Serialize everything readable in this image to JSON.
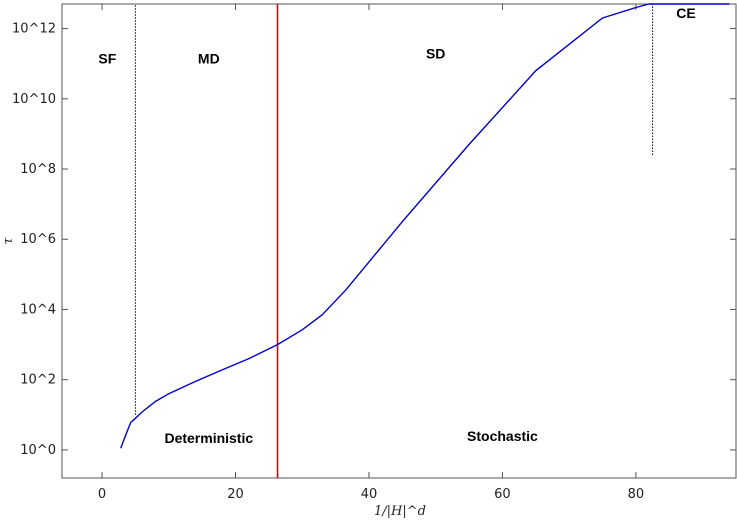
{
  "chart_data": {
    "type": "line",
    "title": "",
    "xlabel": "1/|H|^d",
    "ylabel": "τ",
    "xlim": [
      -6,
      95
    ],
    "ylim_log10": [
      -0.8,
      12.7
    ],
    "y_scale": "log10",
    "x_ticks": [
      0,
      20,
      40,
      60,
      80
    ],
    "y_ticks": [
      {
        "value": 0,
        "label": "10^0"
      },
      {
        "value": 2,
        "label": "10^2"
      },
      {
        "value": 4,
        "label": "10^4"
      },
      {
        "value": 6,
        "label": "10^6"
      },
      {
        "value": 8,
        "label": "10^8"
      },
      {
        "value": 10,
        "label": "10^10"
      },
      {
        "value": 12,
        "label": "10^12"
      }
    ],
    "series": [
      {
        "color": "#0000c8",
        "x": [
          2.8,
          3.5,
          4.3,
          5.0,
          6.0,
          8.0,
          10.0,
          14.0,
          18.0,
          22.0,
          26.3,
          30.0,
          33.0,
          35.0,
          36.5,
          45.0,
          55.0,
          65.0,
          75.0,
          80.0,
          82.0,
          84.0,
          86.0,
          88.0,
          91.0,
          94.0
        ],
        "log10_tau": [
          0.05,
          0.4,
          0.78,
          0.9,
          1.08,
          1.38,
          1.6,
          1.95,
          2.28,
          2.6,
          3.0,
          3.42,
          3.85,
          4.25,
          4.55,
          6.5,
          8.7,
          10.8,
          12.3,
          12.6,
          12.72,
          12.9,
          13.0,
          13.06,
          13.1,
          13.12
        ]
      }
    ],
    "vlines": [
      {
        "x": 5.0,
        "style": "dotted",
        "color": "#000000",
        "y_from": 1.0,
        "y_to": 13.5
      },
      {
        "x": 26.3,
        "style": "solid",
        "color": "#cc0000",
        "y_from": -1.0,
        "y_to": 13.5
      },
      {
        "x": 82.5,
        "style": "dotted",
        "color": "#000000",
        "y_from": 8.4,
        "y_to": 13.5
      }
    ],
    "annotations": [
      {
        "text": "SF",
        "x": 0.8,
        "y": 11.0
      },
      {
        "text": "MD",
        "x": 16.0,
        "y": 11.0
      },
      {
        "text": "SD",
        "x": 50.0,
        "y": 11.15
      },
      {
        "text": "CE",
        "x": 87.5,
        "y": 12.3
      },
      {
        "text": "Deterministic",
        "x": 16.0,
        "y": 0.2
      },
      {
        "text": "Stochastic",
        "x": 60.0,
        "y": 0.25
      }
    ],
    "grid": false,
    "legend": "none"
  }
}
